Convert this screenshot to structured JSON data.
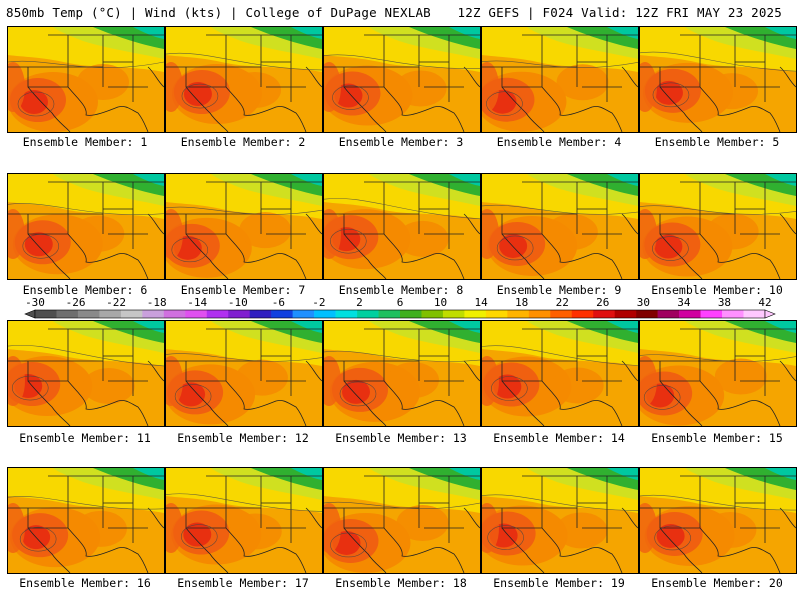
{
  "header": {
    "title_left": "850mb Temp (°C) | Wind (kts) | College of DuPage NEXLAB",
    "title_right": "12Z GEFS | F024 Valid: 12Z FRI MAY 23 2025"
  },
  "members": [
    "Ensemble Member: 1",
    "Ensemble Member: 2",
    "Ensemble Member: 3",
    "Ensemble Member: 4",
    "Ensemble Member: 5",
    "Ensemble Member: 6",
    "Ensemble Member: 7",
    "Ensemble Member: 8",
    "Ensemble Member: 9",
    "Ensemble Member: 10",
    "Ensemble Member: 11",
    "Ensemble Member: 12",
    "Ensemble Member: 13",
    "Ensemble Member: 14",
    "Ensemble Member: 15",
    "Ensemble Member: 16",
    "Ensemble Member: 17",
    "Ensemble Member: 18",
    "Ensemble Member: 19",
    "Ensemble Member: 20"
  ],
  "colorbar": {
    "labels": [
      "-30",
      "-26",
      "-22",
      "-18",
      "-14",
      "-10",
      "-6",
      "-2",
      "2",
      "6",
      "10",
      "14",
      "18",
      "22",
      "26",
      "30",
      "34",
      "38",
      "42"
    ],
    "colors": [
      "#4f4f4f",
      "#6e6e6e",
      "#8a8a8a",
      "#a8a8a8",
      "#c6c6c6",
      "#c9a0dc",
      "#d070e0",
      "#e050f0",
      "#b030f0",
      "#8020d0",
      "#3020c0",
      "#1040e0",
      "#1e90ff",
      "#00c0ff",
      "#00e0e0",
      "#00d0a0",
      "#20c060",
      "#40b020",
      "#80c000",
      "#c0dd00",
      "#f0f000",
      "#ffd800",
      "#ffb400",
      "#ff9000",
      "#ff6000",
      "#ff3000",
      "#e01010",
      "#b00000",
      "#800000",
      "#a00060",
      "#d000a0",
      "#ff40ff",
      "#ff90ff",
      "#ffc8ff"
    ]
  },
  "map_colors": {
    "hot": "#e83010",
    "warm": "#f06010",
    "mid": "#f58a00",
    "base": "#f5a500",
    "yellow": "#f8d800",
    "lime": "#d0e020",
    "green": "#30b030",
    "teal": "#00c8a0"
  }
}
